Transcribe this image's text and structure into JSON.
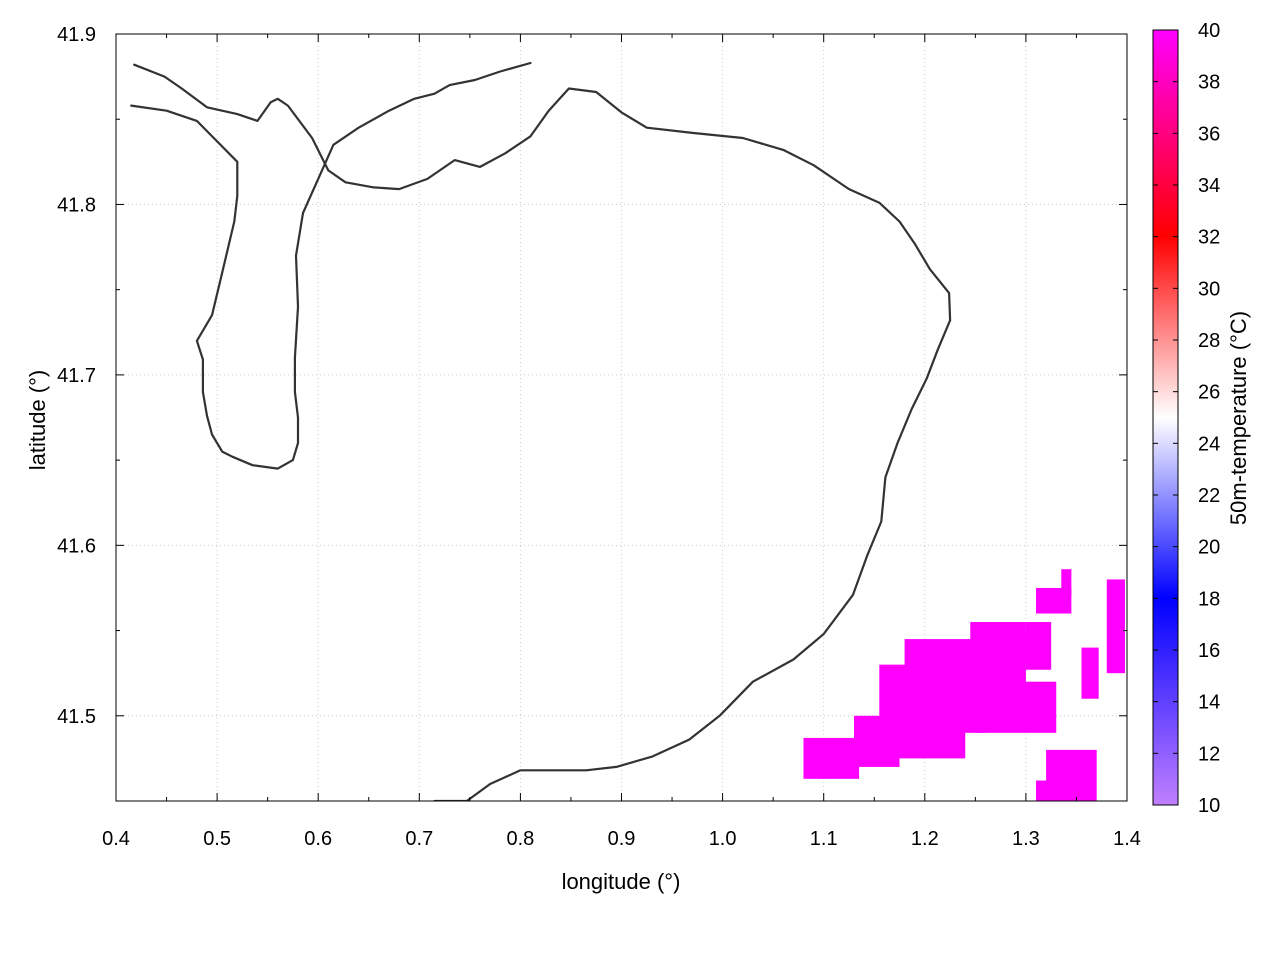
{
  "chart_data": {
    "type": "heatmap",
    "xlabel": "longitude (°)",
    "ylabel": "latitude (°)",
    "colorbar_label": "50m-temperature (°C)",
    "xlim": [
      0.4,
      1.4
    ],
    "ylim": [
      41.45,
      41.9
    ],
    "x_ticks": [
      {
        "value": 0.4,
        "label": "0.4"
      },
      {
        "value": 0.5,
        "label": "0.5"
      },
      {
        "value": 0.6,
        "label": "0.6"
      },
      {
        "value": 0.7,
        "label": "0.7"
      },
      {
        "value": 0.8,
        "label": "0.8"
      },
      {
        "value": 0.9,
        "label": "0.9"
      },
      {
        "value": 1.0,
        "label": "1.0"
      },
      {
        "value": 1.1,
        "label": "1.1"
      },
      {
        "value": 1.2,
        "label": "1.2"
      },
      {
        "value": 1.3,
        "label": "1.3"
      },
      {
        "value": 1.4,
        "label": "1.4"
      }
    ],
    "y_ticks": [
      {
        "value": 41.5,
        "label": "41.5"
      },
      {
        "value": 41.6,
        "label": "41.6"
      },
      {
        "value": 41.7,
        "label": "41.7"
      },
      {
        "value": 41.8,
        "label": "41.8"
      },
      {
        "value": 41.9,
        "label": "41.9"
      }
    ],
    "colorbar": {
      "range": [
        10,
        40
      ],
      "ticks": [
        {
          "value": 10,
          "label": "10"
        },
        {
          "value": 12,
          "label": "12"
        },
        {
          "value": 14,
          "label": "14"
        },
        {
          "value": 16,
          "label": "16"
        },
        {
          "value": 18,
          "label": "18"
        },
        {
          "value": 20,
          "label": "20"
        },
        {
          "value": 22,
          "label": "22"
        },
        {
          "value": 24,
          "label": "24"
        },
        {
          "value": 26,
          "label": "26"
        },
        {
          "value": 28,
          "label": "28"
        },
        {
          "value": 30,
          "label": "30"
        },
        {
          "value": 32,
          "label": "32"
        },
        {
          "value": 34,
          "label": "34"
        },
        {
          "value": 36,
          "label": "36"
        },
        {
          "value": 38,
          "label": "38"
        },
        {
          "value": 40,
          "label": "40"
        }
      ],
      "colormap_stops": [
        {
          "value": 10,
          "color": "#c080ff"
        },
        {
          "value": 18,
          "color": "#0000ff"
        },
        {
          "value": 25,
          "color": "#ffffff"
        },
        {
          "value": 32,
          "color": "#ff0000"
        },
        {
          "value": 40,
          "color": "#ff00ff"
        }
      ]
    },
    "grid": true,
    "heat_patches": [
      {
        "value": 40,
        "lon": [
          1.08,
          1.135
        ],
        "lat": [
          41.463,
          41.487
        ]
      },
      {
        "value": 40,
        "lon": [
          1.13,
          1.175
        ],
        "lat": [
          41.47,
          41.5
        ]
      },
      {
        "value": 40,
        "lon": [
          1.155,
          1.24
        ],
        "lat": [
          41.475,
          41.53
        ]
      },
      {
        "value": 40,
        "lon": [
          1.18,
          1.26
        ],
        "lat": [
          41.49,
          41.545
        ]
      },
      {
        "value": 40,
        "lon": [
          1.25,
          1.33
        ],
        "lat": [
          41.49,
          41.52
        ]
      },
      {
        "value": 40,
        "lon": [
          1.245,
          1.3
        ],
        "lat": [
          41.515,
          41.555
        ]
      },
      {
        "value": 40,
        "lon": [
          1.3,
          1.325
        ],
        "lat": [
          41.527,
          41.555
        ]
      },
      {
        "value": 40,
        "lon": [
          1.28,
          1.32
        ],
        "lat": [
          41.53,
          41.55
        ]
      },
      {
        "value": 40,
        "lon": [
          1.31,
          1.345
        ],
        "lat": [
          41.56,
          41.575
        ]
      },
      {
        "value": 40,
        "lon": [
          1.335,
          1.345
        ],
        "lat": [
          41.57,
          41.586
        ]
      },
      {
        "value": 40,
        "lon": [
          1.38,
          1.398
        ],
        "lat": [
          41.525,
          41.58
        ]
      },
      {
        "value": 40,
        "lon": [
          1.355,
          1.372
        ],
        "lat": [
          41.51,
          41.54
        ]
      },
      {
        "value": 40,
        "lon": [
          1.32,
          1.37
        ],
        "lat": [
          41.45,
          41.48
        ]
      },
      {
        "value": 40,
        "lon": [
          1.31,
          1.345
        ],
        "lat": [
          41.45,
          41.462
        ]
      }
    ],
    "contours": [
      [
        [
          0.418,
          41.882
        ],
        [
          0.448,
          41.875
        ],
        [
          0.465,
          41.868
        ],
        [
          0.49,
          41.857
        ],
        [
          0.52,
          41.853
        ],
        [
          0.54,
          41.849
        ],
        [
          0.553,
          41.86
        ],
        [
          0.56,
          41.862
        ],
        [
          0.57,
          41.858
        ],
        [
          0.594,
          41.839
        ],
        [
          0.61,
          41.82
        ],
        [
          0.627,
          41.813
        ],
        [
          0.655,
          41.81
        ],
        [
          0.68,
          41.809
        ],
        [
          0.708,
          41.815
        ],
        [
          0.735,
          41.826
        ],
        [
          0.76,
          41.822
        ],
        [
          0.785,
          41.83
        ],
        [
          0.81,
          41.84
        ],
        [
          0.828,
          41.855
        ],
        [
          0.848,
          41.868
        ],
        [
          0.875,
          41.866
        ],
        [
          0.9,
          41.854
        ],
        [
          0.925,
          41.845
        ],
        [
          0.97,
          41.842
        ],
        [
          1.02,
          41.839
        ],
        [
          1.06,
          41.832
        ],
        [
          1.09,
          41.823
        ],
        [
          1.125,
          41.809
        ],
        [
          1.155,
          41.801
        ],
        [
          1.175,
          41.79
        ],
        [
          1.19,
          41.777
        ],
        [
          1.205,
          41.762
        ],
        [
          1.224,
          41.748
        ],
        [
          1.225,
          41.732
        ]
      ],
      [
        [
          1.225,
          41.732
        ],
        [
          1.213,
          41.715
        ],
        [
          1.202,
          41.698
        ],
        [
          1.187,
          41.68
        ],
        [
          1.173,
          41.66
        ],
        [
          1.161,
          41.64
        ],
        [
          1.157,
          41.614
        ],
        [
          1.143,
          41.594
        ],
        [
          1.129,
          41.571
        ],
        [
          1.1,
          41.548
        ],
        [
          1.07,
          41.533
        ],
        [
          1.03,
          41.52
        ],
        [
          0.997,
          41.5
        ],
        [
          0.967,
          41.486
        ],
        [
          0.93,
          41.476
        ],
        [
          0.895,
          41.47
        ],
        [
          0.865,
          41.468
        ],
        [
          0.8,
          41.468
        ],
        [
          0.77,
          41.46
        ],
        [
          0.747,
          41.45
        ],
        [
          0.725,
          41.45
        ],
        [
          0.715,
          41.45
        ]
      ],
      [
        [
          0.415,
          41.858
        ],
        [
          0.45,
          41.855
        ],
        [
          0.48,
          41.849
        ],
        [
          0.5,
          41.837
        ],
        [
          0.52,
          41.825
        ],
        [
          0.52,
          41.805
        ],
        [
          0.517,
          41.79
        ],
        [
          0.505,
          41.76
        ],
        [
          0.495,
          41.735
        ],
        [
          0.48,
          41.72
        ],
        [
          0.486,
          41.709
        ],
        [
          0.486,
          41.69
        ],
        [
          0.49,
          41.676
        ],
        [
          0.495,
          41.665
        ],
        [
          0.505,
          41.655
        ],
        [
          0.515,
          41.652
        ],
        [
          0.535,
          41.647
        ],
        [
          0.56,
          41.645
        ],
        [
          0.575,
          41.65
        ],
        [
          0.58,
          41.66
        ],
        [
          0.58,
          41.675
        ],
        [
          0.577,
          41.69
        ],
        [
          0.577,
          41.71
        ],
        [
          0.58,
          41.74
        ],
        [
          0.578,
          41.77
        ],
        [
          0.585,
          41.795
        ],
        [
          0.6,
          41.815
        ],
        [
          0.615,
          41.835
        ],
        [
          0.64,
          41.845
        ],
        [
          0.67,
          41.855
        ],
        [
          0.695,
          41.862
        ],
        [
          0.715,
          41.865
        ],
        [
          0.73,
          41.87
        ],
        [
          0.755,
          41.873
        ],
        [
          0.78,
          41.878
        ],
        [
          0.81,
          41.883
        ]
      ]
    ]
  }
}
